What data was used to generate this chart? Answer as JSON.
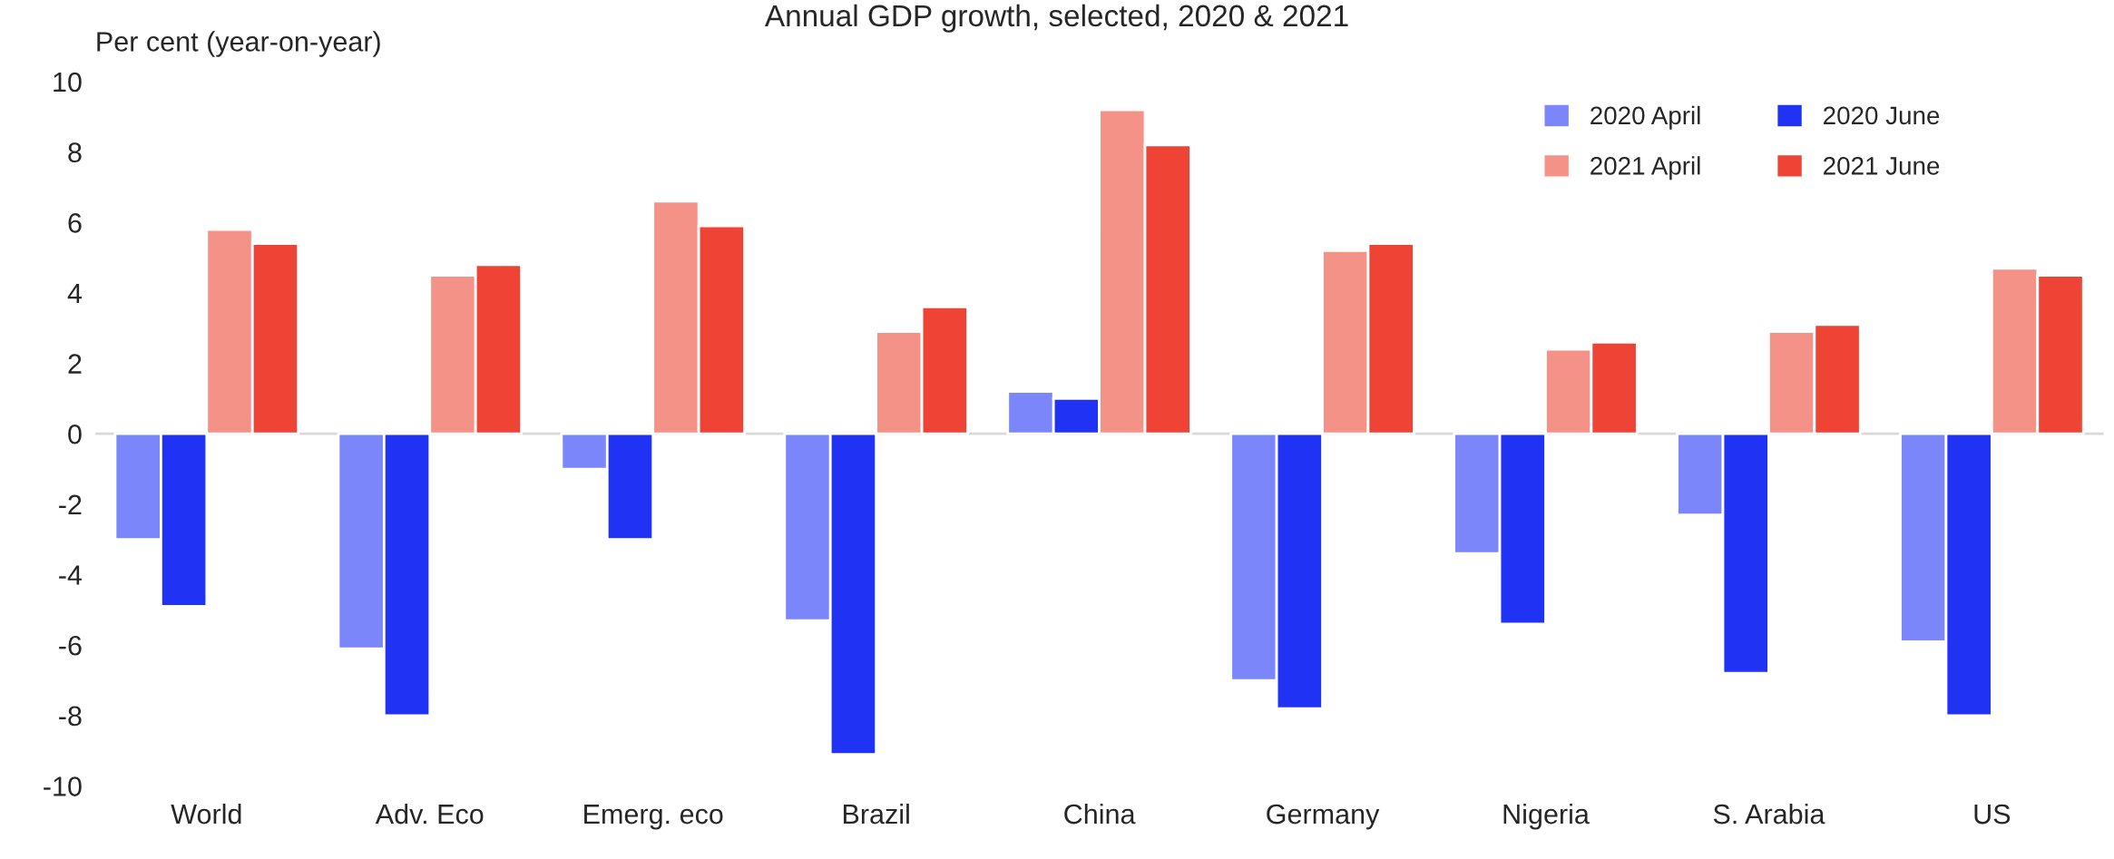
{
  "chart_data": {
    "type": "bar",
    "title": "Annual GDP growth, selected, 2020 & 2021",
    "ylabel": "Per cent (year-on-year)",
    "categories": [
      "World",
      "Adv. Eco",
      "Emerg. eco",
      "Brazil",
      "China",
      "Germany",
      "Nigeria",
      "S. Arabia",
      "US"
    ],
    "series": [
      {
        "name": "2020 April",
        "color": "#7b86fb",
        "values": [
          -3.0,
          -6.1,
          -1.0,
          -5.3,
          1.2,
          -7.0,
          -3.4,
          -2.3,
          -5.9
        ]
      },
      {
        "name": "2020 June",
        "color": "#2033f5",
        "values": [
          -4.9,
          -8.0,
          -3.0,
          -9.1,
          1.0,
          -7.8,
          -5.4,
          -6.8,
          -8.0
        ]
      },
      {
        "name": "2021 April",
        "color": "#f59287",
        "values": [
          5.8,
          4.5,
          6.6,
          2.9,
          9.2,
          5.2,
          2.4,
          2.9,
          4.7
        ]
      },
      {
        "name": "2021 June",
        "color": "#ef4335",
        "values": [
          5.4,
          4.8,
          5.9,
          3.6,
          8.2,
          5.4,
          2.6,
          3.1,
          4.5
        ]
      }
    ],
    "ylim": [
      -10,
      10
    ],
    "yticks": [
      -10,
      -8,
      -6,
      -4,
      -2,
      0,
      2,
      4,
      6,
      8,
      10
    ],
    "ref_lines": [
      {
        "axis": "y",
        "value": 0,
        "color": "#d9d9d9"
      }
    ],
    "grid": false,
    "legend": "top right"
  }
}
